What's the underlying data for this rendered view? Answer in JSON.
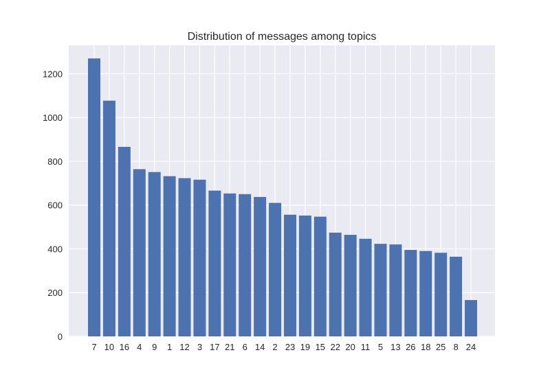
{
  "chart_data": {
    "type": "bar",
    "title": "Distribution of messages among topics",
    "xlabel": "",
    "ylabel": "",
    "categories": [
      "7",
      "10",
      "16",
      "4",
      "9",
      "1",
      "12",
      "3",
      "17",
      "21",
      "6",
      "14",
      "2",
      "23",
      "19",
      "15",
      "22",
      "20",
      "11",
      "5",
      "13",
      "26",
      "18",
      "25",
      "8",
      "24"
    ],
    "values": [
      1270,
      1077,
      866,
      764,
      751,
      732,
      723,
      716,
      666,
      653,
      650,
      637,
      610,
      556,
      552,
      547,
      474,
      464,
      446,
      423,
      420,
      395,
      390,
      382,
      364,
      166
    ],
    "ylim": [
      0,
      1330
    ],
    "yticks": [
      0,
      200,
      400,
      600,
      800,
      1000,
      1200
    ],
    "grid": true,
    "colors": {
      "bar": "#4c72b0",
      "plot_background": "#eaeaf2",
      "grid": "#ffffff"
    }
  }
}
